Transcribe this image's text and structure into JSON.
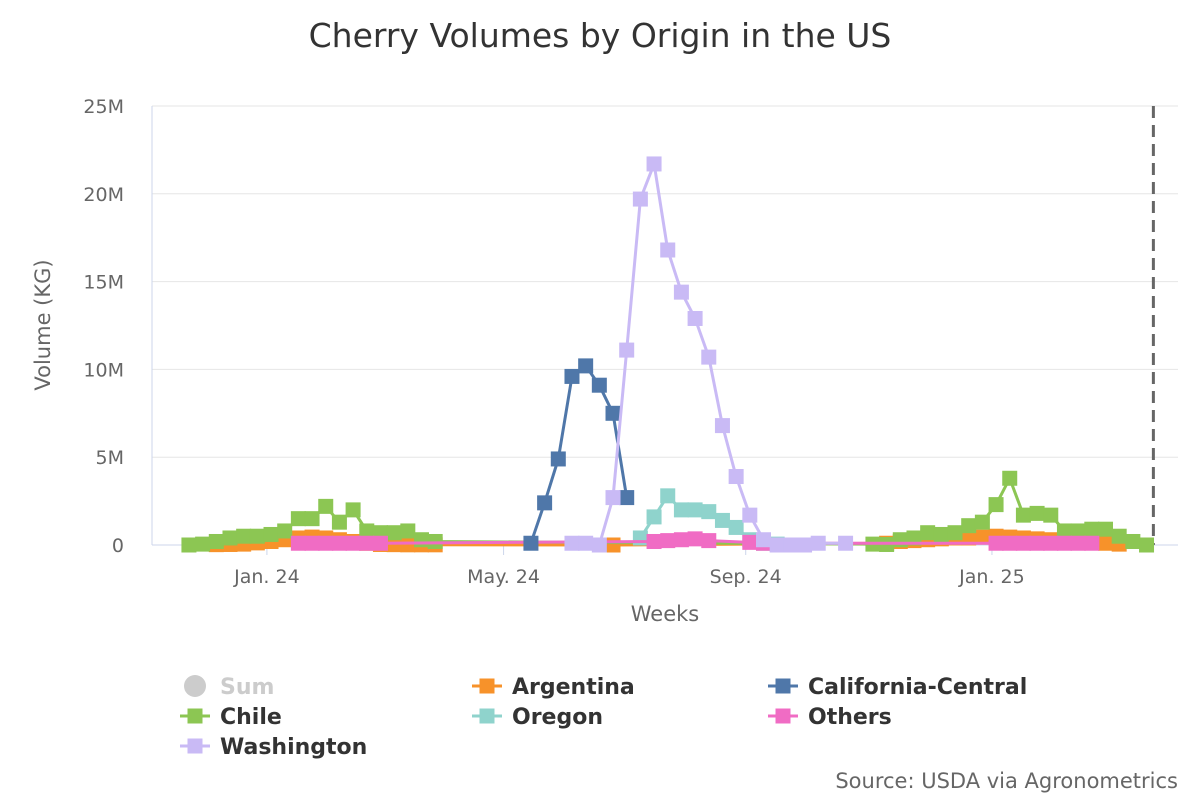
{
  "chart_data": {
    "type": "line",
    "title": "Cherry Volumes by Origin in the US",
    "xlabel": "Weeks",
    "ylabel": "Volume (KG)",
    "ylim": [
      0,
      25000000
    ],
    "y_ticks": [
      {
        "value": 0,
        "label": "0"
      },
      {
        "value": 5000000,
        "label": "5M"
      },
      {
        "value": 10000000,
        "label": "10M"
      },
      {
        "value": 15000000,
        "label": "15M"
      },
      {
        "value": 20000000,
        "label": "20M"
      },
      {
        "value": 25000000,
        "label": "25M"
      }
    ],
    "x_unit": "week index from first week of Dec 2023",
    "xlim": [
      -0.7,
      74.3
    ],
    "x_ticks": [
      {
        "value": 7.7,
        "label": "Jan. 24"
      },
      {
        "value": 25,
        "label": "May. 24"
      },
      {
        "value": 42.7,
        "label": "Sep. 24"
      },
      {
        "value": 60.7,
        "label": "Jan. 25"
      }
    ],
    "plot_end_marker": 72.5,
    "grid": true,
    "legend_position": "bottom",
    "series": [
      {
        "name": "Sum",
        "color": "#cccccc",
        "marker": "circle",
        "visible": false,
        "points": []
      },
      {
        "name": "Argentina",
        "color": "#f7922a",
        "marker": "square",
        "visible": true,
        "points": [
          [
            4,
            20000
          ],
          [
            5,
            30000
          ],
          [
            6,
            50000
          ],
          [
            7,
            120000
          ],
          [
            8,
            200000
          ],
          [
            9,
            300000
          ],
          [
            10,
            400000
          ],
          [
            11,
            450000
          ],
          [
            12,
            400000
          ],
          [
            13,
            300000
          ],
          [
            14,
            200000
          ],
          [
            15,
            100000
          ],
          [
            16,
            30000
          ],
          [
            17,
            20000
          ],
          [
            18,
            10000
          ],
          [
            19,
            10000
          ],
          [
            20,
            10000
          ],
          [
            33,
            0
          ],
          [
            53,
            100000
          ],
          [
            54,
            200000
          ],
          [
            55,
            250000
          ],
          [
            56,
            300000
          ],
          [
            57,
            350000
          ],
          [
            58,
            400000
          ],
          [
            59,
            400000
          ],
          [
            60,
            450000
          ],
          [
            61,
            500000
          ],
          [
            62,
            450000
          ],
          [
            63,
            400000
          ],
          [
            64,
            350000
          ],
          [
            65,
            300000
          ],
          [
            66,
            250000
          ],
          [
            67,
            200000
          ],
          [
            68,
            150000
          ],
          [
            69,
            100000
          ],
          [
            70,
            50000
          ]
        ]
      },
      {
        "name": "California-Central",
        "color": "#4f77a9",
        "marker": "square",
        "visible": true,
        "points": [
          [
            27,
            100000
          ],
          [
            28,
            2400000
          ],
          [
            29,
            4900000
          ],
          [
            30,
            9600000
          ],
          [
            31,
            10200000
          ],
          [
            32,
            9100000
          ],
          [
            33,
            7500000
          ],
          [
            34,
            2700000
          ]
        ]
      },
      {
        "name": "Chile",
        "color": "#8cc653",
        "marker": "square",
        "visible": true,
        "points": [
          [
            2,
            0
          ],
          [
            3,
            50000
          ],
          [
            4,
            200000
          ],
          [
            5,
            400000
          ],
          [
            6,
            500000
          ],
          [
            7,
            500000
          ],
          [
            8,
            600000
          ],
          [
            9,
            800000
          ],
          [
            10,
            1500000
          ],
          [
            11,
            1500000
          ],
          [
            12,
            2200000
          ],
          [
            13,
            1300000
          ],
          [
            14,
            2000000
          ],
          [
            15,
            800000
          ],
          [
            16,
            700000
          ],
          [
            17,
            700000
          ],
          [
            18,
            800000
          ],
          [
            19,
            300000
          ],
          [
            20,
            200000
          ],
          [
            52,
            50000
          ],
          [
            53,
            30000
          ],
          [
            54,
            300000
          ],
          [
            55,
            400000
          ],
          [
            56,
            700000
          ],
          [
            57,
            600000
          ],
          [
            58,
            700000
          ],
          [
            59,
            1100000
          ],
          [
            60,
            1300000
          ],
          [
            61,
            2300000
          ],
          [
            62,
            3800000
          ],
          [
            63,
            1700000
          ],
          [
            64,
            1800000
          ],
          [
            65,
            1700000
          ],
          [
            66,
            800000
          ],
          [
            67,
            800000
          ],
          [
            68,
            900000
          ],
          [
            69,
            900000
          ],
          [
            70,
            500000
          ],
          [
            71,
            200000
          ],
          [
            72,
            0
          ]
        ]
      },
      {
        "name": "Oregon",
        "color": "#8fd3cc",
        "marker": "square",
        "visible": true,
        "points": [
          [
            35,
            400000
          ],
          [
            36,
            1600000
          ],
          [
            37,
            2800000
          ],
          [
            38,
            2000000
          ],
          [
            39,
            2000000
          ],
          [
            40,
            1900000
          ],
          [
            41,
            1400000
          ],
          [
            42,
            1000000
          ],
          [
            43,
            300000
          ],
          [
            44,
            100000
          ],
          [
            45,
            50000
          ]
        ]
      },
      {
        "name": "Others",
        "color": "#f06cc4",
        "marker": "square",
        "visible": true,
        "points": [
          [
            10,
            100000
          ],
          [
            11,
            100000
          ],
          [
            12,
            100000
          ],
          [
            13,
            100000
          ],
          [
            14,
            100000
          ],
          [
            15,
            100000
          ],
          [
            16,
            100000
          ],
          [
            36,
            200000
          ],
          [
            37,
            250000
          ],
          [
            38,
            300000
          ],
          [
            39,
            350000
          ],
          [
            40,
            250000
          ],
          [
            43,
            150000
          ],
          [
            44,
            100000
          ],
          [
            61,
            100000
          ],
          [
            62,
            100000
          ],
          [
            63,
            100000
          ],
          [
            64,
            100000
          ],
          [
            65,
            100000
          ],
          [
            66,
            100000
          ],
          [
            67,
            100000
          ],
          [
            68,
            100000
          ]
        ]
      },
      {
        "name": "Washington",
        "color": "#c9baf5",
        "marker": "square",
        "visible": true,
        "points": [
          [
            30,
            100000
          ],
          [
            31,
            100000
          ],
          [
            32,
            0
          ],
          [
            33,
            2700000
          ],
          [
            34,
            11100000
          ],
          [
            35,
            19700000
          ],
          [
            36,
            21700000
          ],
          [
            37,
            16800000
          ],
          [
            38,
            14400000
          ],
          [
            39,
            12900000
          ],
          [
            40,
            10700000
          ],
          [
            41,
            6800000
          ],
          [
            42,
            3900000
          ],
          [
            43,
            1700000
          ],
          [
            44,
            300000
          ],
          [
            45,
            0
          ],
          [
            46,
            0
          ],
          [
            47,
            0
          ],
          [
            48,
            100000
          ],
          [
            50,
            100000
          ]
        ]
      }
    ]
  },
  "source": "Source: USDA via Agronometrics"
}
